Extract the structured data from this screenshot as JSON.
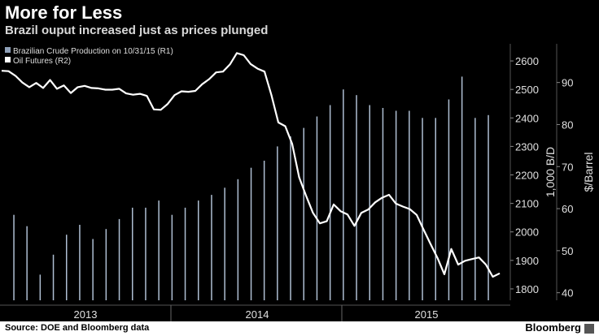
{
  "header": {
    "title": "More for Less",
    "subtitle": "Brazil ouput increased just as prices plunged"
  },
  "footer": {
    "source": "Source: DOE and Bloomberg data",
    "brand": "Bloomberg"
  },
  "colors": {
    "background": "#000000",
    "bars": "#aebed2",
    "line": "#ffffff",
    "grid": "#3a3a3a",
    "axis_text": "#e0e0e0"
  },
  "chart_data": {
    "type": "bar+line",
    "legend": [
      {
        "label": "Brazilian Crude Production on 10/31/15 (R1)",
        "swatch": "#8fa0b8"
      },
      {
        "label": "Oil Futures (R2)",
        "swatch": "#ffffff"
      }
    ],
    "legend_position": "top-left",
    "x_ticks": [
      "2013",
      "2014",
      "2015"
    ],
    "y1": {
      "label": "1,000 B/D",
      "ticks": [
        1800,
        1900,
        2000,
        2100,
        2200,
        2300,
        2400,
        2500,
        2600
      ],
      "range": [
        1760,
        2660
      ]
    },
    "y2": {
      "label": "$/Barrel",
      "ticks": [
        40,
        50,
        60,
        70,
        80,
        90
      ],
      "range": [
        38.2,
        99.2
      ]
    },
    "bar_series": {
      "name": "Brazilian Crude Production",
      "unit": "1,000 B/D",
      "values": [
        2060,
        2020,
        1850,
        1920,
        1990,
        2025,
        1975,
        2010,
        2045,
        2085,
        2085,
        2110,
        2060,
        2085,
        2110,
        2130,
        2155,
        2185,
        2225,
        2250,
        2300,
        2335,
        2365,
        2405,
        2445,
        2500,
        2480,
        2445,
        2435,
        2425,
        2425,
        2400,
        2400,
        2465,
        2545,
        2400,
        2410
      ]
    },
    "line_series": {
      "name": "Oil Futures",
      "unit": "$/Barrel",
      "values": [
        92.8,
        92.7,
        91.6,
        90.0,
        88.9,
        89.9,
        88.7,
        90.6,
        88.5,
        89.3,
        87.5,
        88.9,
        89.2,
        88.7,
        88.6,
        88.3,
        88.3,
        88.5,
        87.4,
        87.1,
        87.3,
        86.8,
        83.6,
        83.5,
        84.9,
        87.0,
        87.9,
        87.8,
        88.0,
        89.6,
        90.8,
        92.4,
        92.6,
        94.3,
        97.0,
        96.5,
        94.4,
        93.3,
        92.6,
        87.0,
        80.5,
        79.6,
        75.4,
        67.5,
        63.1,
        59.0,
        56.5,
        57.0,
        61.0,
        59.4,
        58.6,
        55.9,
        59.0,
        59.8,
        61.5,
        62.6,
        63.3,
        61.2,
        60.5,
        59.9,
        58.5,
        55.0,
        51.6,
        48.3,
        44.4,
        50.4,
        46.7,
        47.6,
        48.0,
        48.4,
        46.7,
        43.8,
        44.6
      ]
    }
  }
}
